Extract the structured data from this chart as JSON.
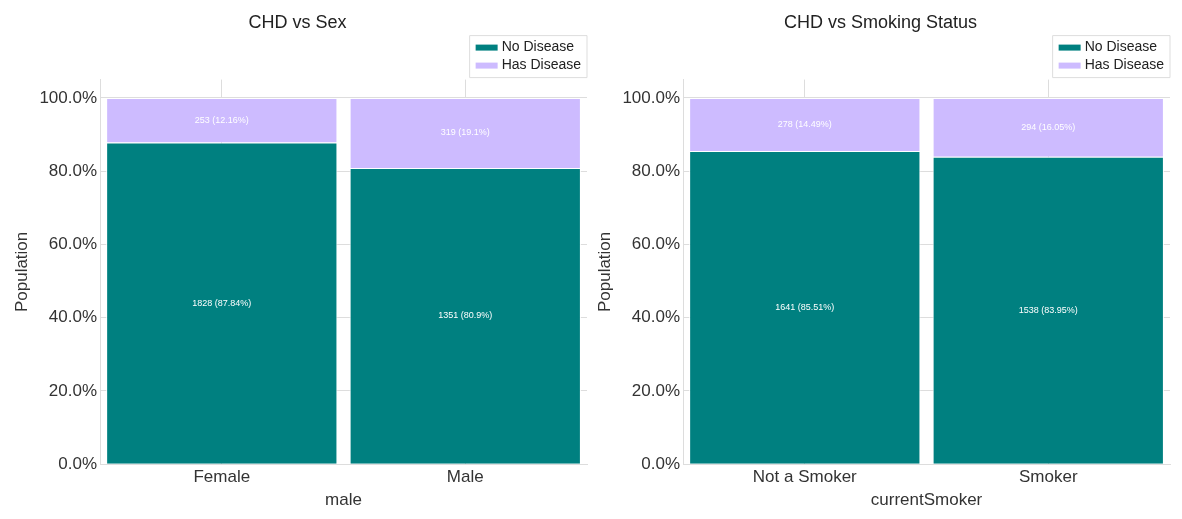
{
  "chart_data": [
    {
      "type": "bar",
      "title": "CHD vs Sex",
      "xlabel": "male",
      "ylabel": "Population",
      "categories": [
        "Female",
        "Male"
      ],
      "stacked": true,
      "series": [
        {
          "name": "No Disease",
          "color": "#008080",
          "values": [
            87.84,
            80.9
          ],
          "value_labels": [
            "1828 (87.84%)",
            "1351 (80.9%)"
          ]
        },
        {
          "name": "Has Disease",
          "color": "#cdbbff",
          "values": [
            12.16,
            19.1
          ],
          "value_labels": [
            "253 (12.16%)",
            "319 (19.1%)"
          ]
        }
      ],
      "ylim": [
        0,
        105
      ],
      "yticks": [
        {
          "value": 0,
          "label": "0.0%"
        },
        {
          "value": 20,
          "label": "20.0%"
        },
        {
          "value": 40,
          "label": "40.0%"
        },
        {
          "value": 60,
          "label": "60.0%"
        },
        {
          "value": 80,
          "label": "80.0%"
        },
        {
          "value": 100,
          "label": "100.0%"
        }
      ],
      "grid": true,
      "legend": "top right"
    },
    {
      "type": "bar",
      "title": "CHD vs Smoking Status",
      "xlabel": "currentSmoker",
      "ylabel": "Population",
      "categories": [
        "Not a Smoker",
        "Smoker"
      ],
      "stacked": true,
      "series": [
        {
          "name": "No Disease",
          "color": "#008080",
          "values": [
            85.51,
            83.95
          ],
          "value_labels": [
            "1641 (85.51%)",
            "1538 (83.95%)"
          ]
        },
        {
          "name": "Has Disease",
          "color": "#cdbbff",
          "values": [
            14.49,
            16.05
          ],
          "value_labels": [
            "278 (14.49%)",
            "294 (16.05%)"
          ]
        }
      ],
      "ylim": [
        0,
        105
      ],
      "yticks": [
        {
          "value": 0,
          "label": "0.0%"
        },
        {
          "value": 20,
          "label": "20.0%"
        },
        {
          "value": 40,
          "label": "40.0%"
        },
        {
          "value": 60,
          "label": "60.0%"
        },
        {
          "value": 80,
          "label": "80.0%"
        },
        {
          "value": 100,
          "label": "100.0%"
        }
      ],
      "grid": true,
      "legend": "top right"
    }
  ]
}
